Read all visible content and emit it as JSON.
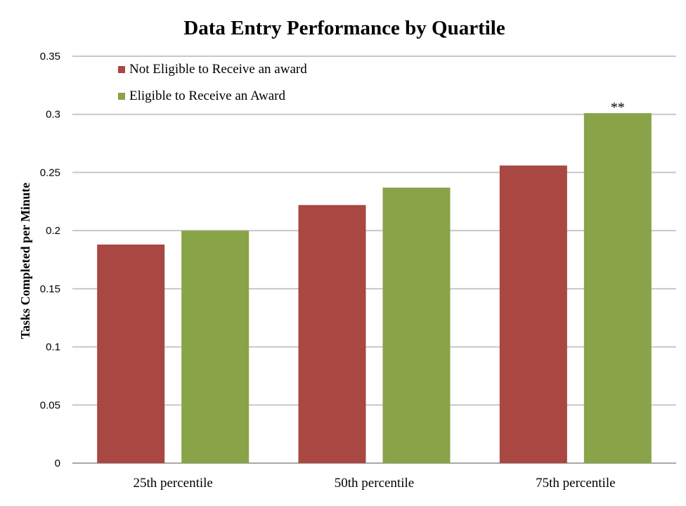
{
  "chart_data": {
    "type": "bar",
    "title": "Data Entry Performance by Quartile",
    "xlabel": "",
    "ylabel": "Tasks Completed per Minute",
    "categories": [
      "25th percentile",
      "50th percentile",
      "75th percentile"
    ],
    "series": [
      {
        "name": "Not Eligible to Receive an award",
        "color": "#a94743",
        "values": [
          0.188,
          0.222,
          0.256
        ]
      },
      {
        "name": "Eligible to Receive an Award",
        "color": "#89a348",
        "values": [
          0.2,
          0.237,
          0.301
        ]
      }
    ],
    "ylim": [
      0,
      0.35
    ],
    "yticks": [
      "0",
      "0.05",
      "0.1",
      "0.15",
      "0.2",
      "0.25",
      "0.3",
      "0.35"
    ],
    "grid": true,
    "legend_position": "top-left",
    "annotations": [
      {
        "text": "**",
        "category": "75th percentile",
        "series": "Eligible to Receive an Award"
      }
    ]
  }
}
